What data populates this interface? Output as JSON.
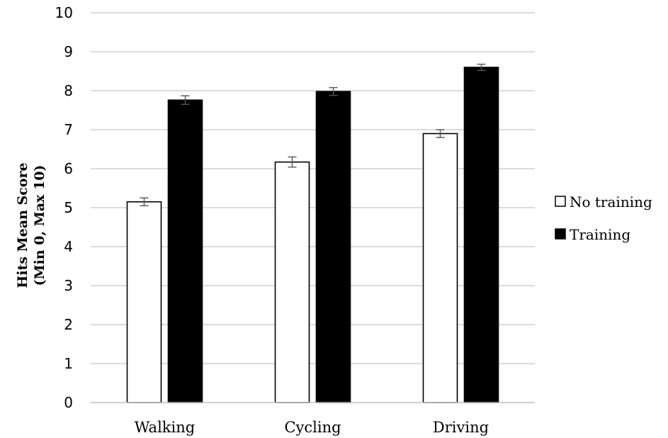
{
  "chart_data": {
    "type": "bar",
    "categories": [
      "Walking",
      "Cycling",
      "Driving"
    ],
    "series": [
      {
        "name": "No training",
        "values": [
          5.15,
          6.17,
          6.9
        ],
        "errors": [
          0.1,
          0.13,
          0.1
        ],
        "color": "#ffffff",
        "stroke": "#000000"
      },
      {
        "name": "Training",
        "values": [
          7.76,
          7.98,
          8.6
        ],
        "errors": [
          0.11,
          0.1,
          0.08
        ],
        "color": "#000000",
        "stroke": "#000000"
      }
    ],
    "yticks": [
      "0",
      "1",
      "2",
      "3",
      "4",
      "5",
      "6",
      "7",
      "8",
      "9",
      "10"
    ],
    "ylim": [
      0,
      10
    ],
    "ylabel_line1": "Hits Mean Score",
    "ylabel_line2": "(Min 0, Max 10)",
    "xlabel": "",
    "title": "",
    "grid": true,
    "legend_position": "right",
    "grid_color": "#c8c8c8"
  }
}
